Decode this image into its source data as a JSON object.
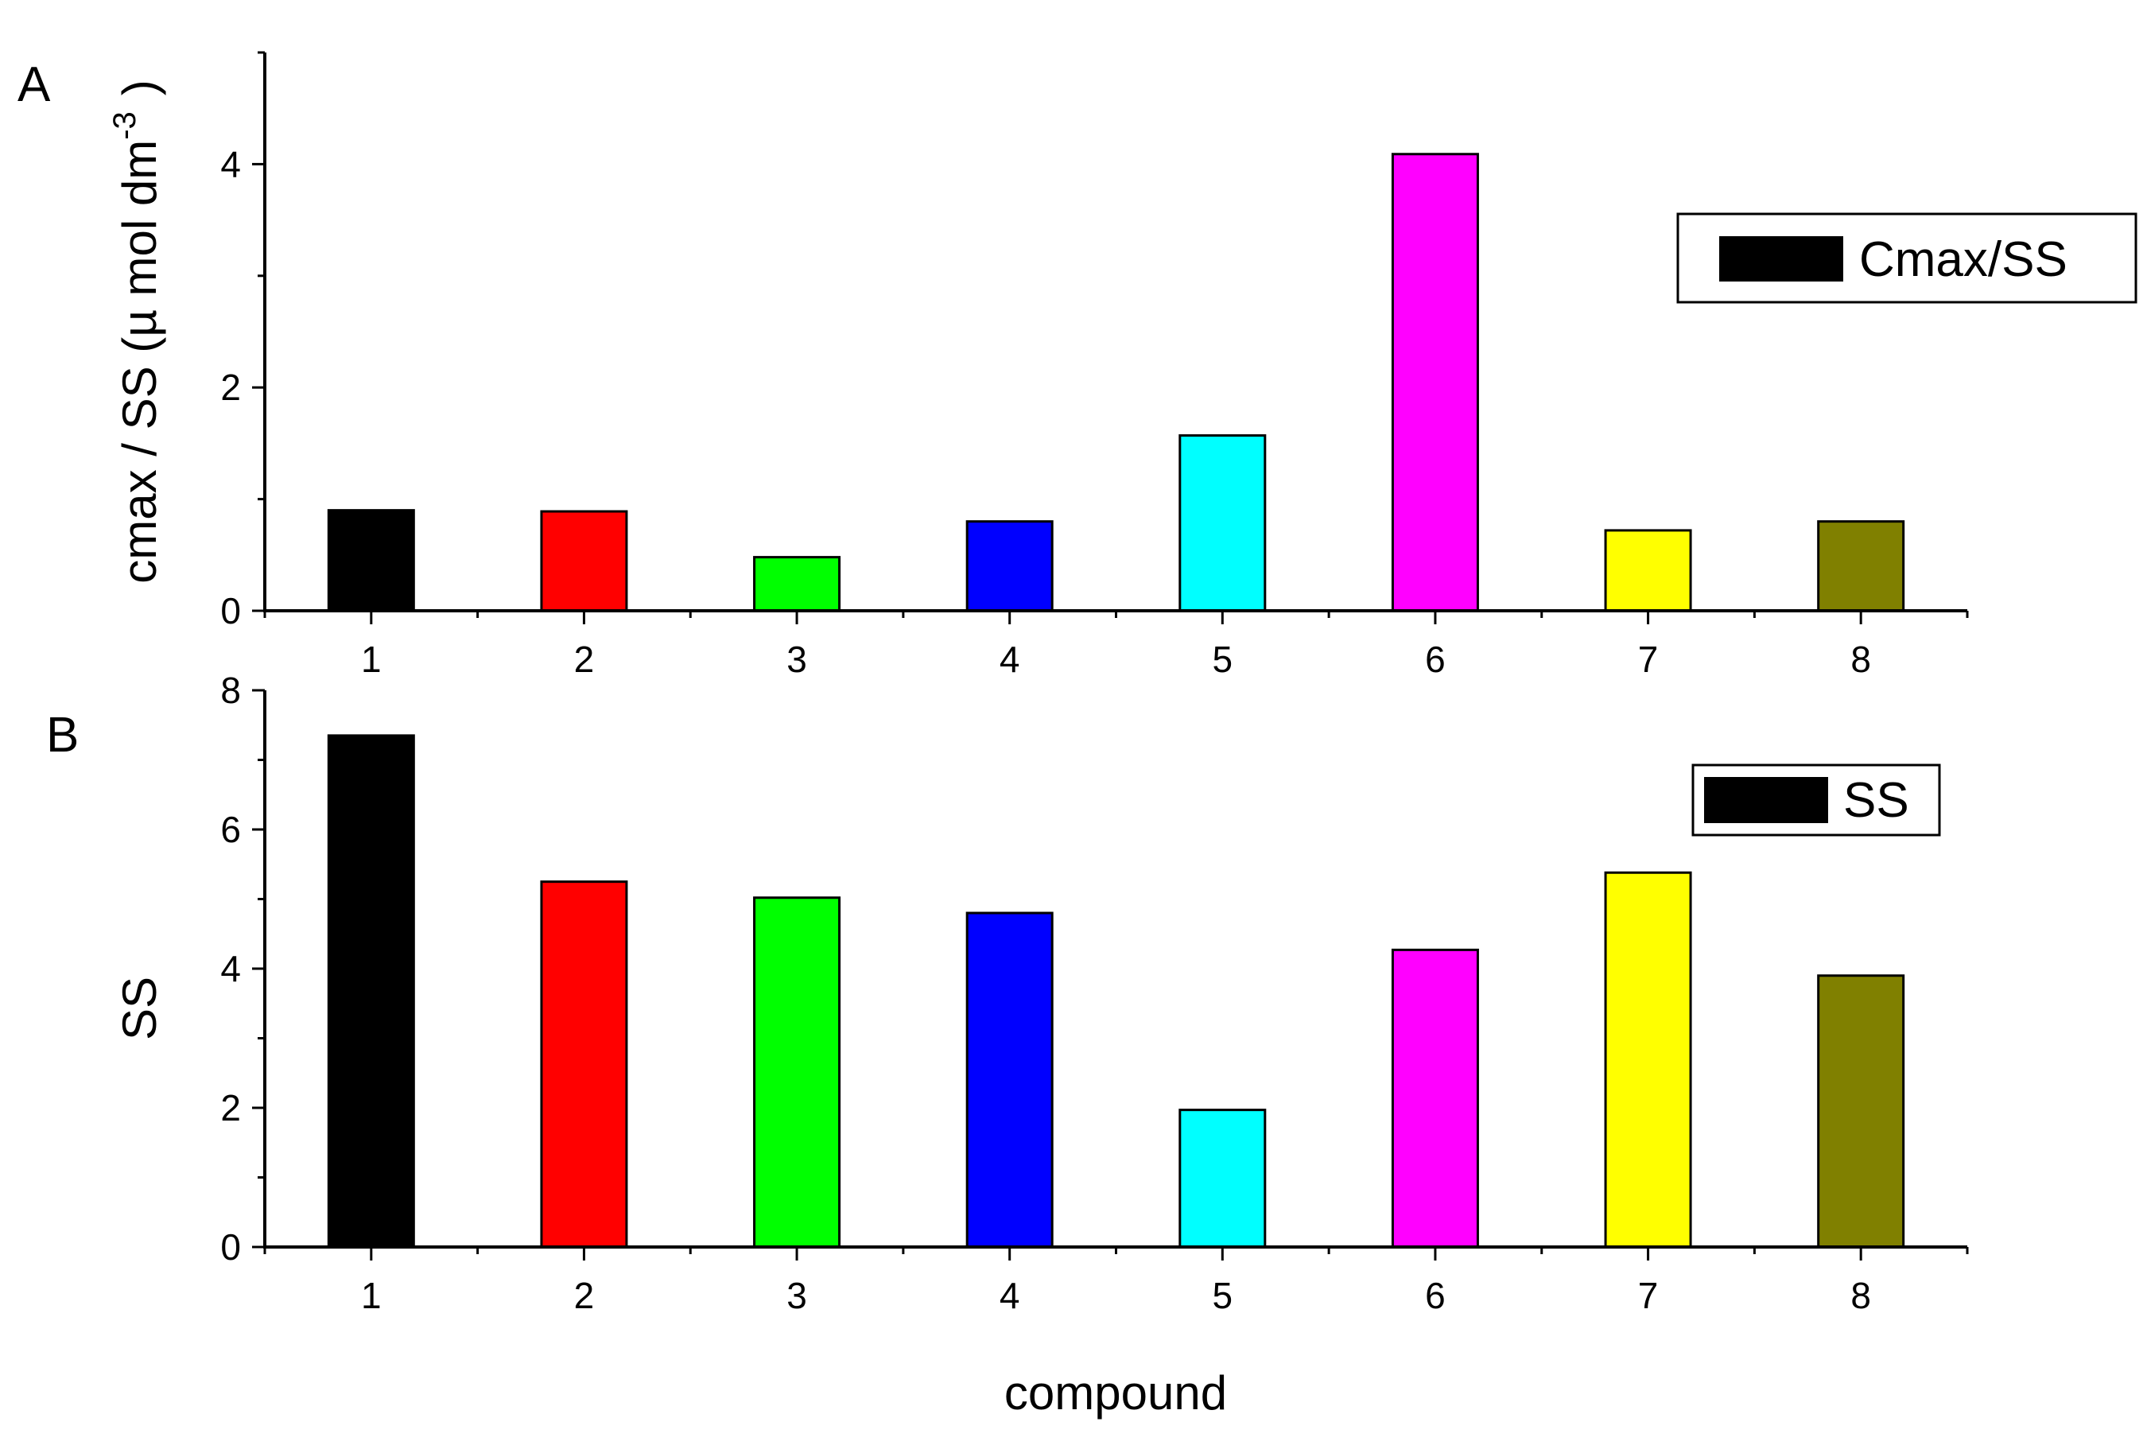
{
  "colors": {
    "bars": [
      "#000000",
      "#ff0000",
      "#00ff00",
      "#0000ff",
      "#00ffff",
      "#ff00ff",
      "#ffff00",
      "#808000"
    ],
    "axis": "#000000",
    "legend_swatch": "#000000"
  },
  "xlabel": "compound",
  "chart_data": [
    {
      "type": "bar",
      "panel_label": "A",
      "categories": [
        "1",
        "2",
        "3",
        "4",
        "5",
        "6",
        "7",
        "8"
      ],
      "series": [
        {
          "name": "Cmax/SS",
          "values": [
            0.9,
            0.89,
            0.48,
            0.8,
            1.57,
            4.09,
            0.72,
            0.8
          ]
        }
      ],
      "ylabel": "cmax / SS (µ mol dm",
      "ylabel_sup": "-3",
      "ylabel_close": ")",
      "ylim": [
        0,
        5
      ],
      "yticks": [
        "0",
        "2",
        "4"
      ],
      "legend": {
        "label": "Cmax/SS",
        "position": "top-right"
      },
      "grid": false
    },
    {
      "type": "bar",
      "panel_label": "B",
      "categories": [
        "1",
        "2",
        "3",
        "4",
        "5",
        "6",
        "7",
        "8"
      ],
      "series": [
        {
          "name": "SS",
          "values": [
            7.35,
            5.25,
            5.02,
            4.8,
            1.97,
            4.27,
            5.38,
            3.9
          ]
        }
      ],
      "xlabel": "compound",
      "ylabel": "SS",
      "ylim": [
        0,
        8
      ],
      "yticks": [
        "0",
        "2",
        "4",
        "6",
        "8"
      ],
      "legend": {
        "label": "SS",
        "position": "top-right"
      },
      "grid": false
    }
  ]
}
